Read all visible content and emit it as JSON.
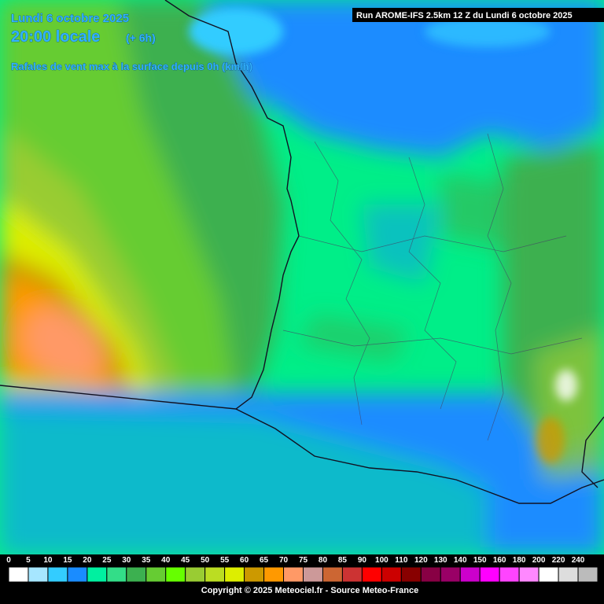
{
  "header": {
    "date": "Lundi 6 octobre 2025",
    "time": "20:00 locale",
    "offset": "(+ 6h)",
    "parameter": "Rafales de vent max à la surface depuis 0h (km/h)",
    "run": "Run AROME-IFS 2.5km 12 Z du Lundi 6 octobre 2025"
  },
  "legend": {
    "items": [
      {
        "label": "0",
        "color": "#ffffff"
      },
      {
        "label": "5",
        "color": "#a6e6ff"
      },
      {
        "label": "10",
        "color": "#33ccff"
      },
      {
        "label": "15",
        "color": "#1a8cff"
      },
      {
        "label": "20",
        "color": "#00f0a0"
      },
      {
        "label": "25",
        "color": "#33dd88"
      },
      {
        "label": "30",
        "color": "#3cb050"
      },
      {
        "label": "35",
        "color": "#66cc33"
      },
      {
        "label": "40",
        "color": "#66ff00"
      },
      {
        "label": "45",
        "color": "#99cc33"
      },
      {
        "label": "50",
        "color": "#bbdd22"
      },
      {
        "label": "55",
        "color": "#ddee00"
      },
      {
        "label": "60",
        "color": "#cc9900"
      },
      {
        "label": "65",
        "color": "#ff9900"
      },
      {
        "label": "70",
        "color": "#ff9966"
      },
      {
        "label": "75",
        "color": "#cc9999"
      },
      {
        "label": "80",
        "color": "#cc6633"
      },
      {
        "label": "85",
        "color": "#cc3333"
      },
      {
        "label": "90",
        "color": "#ff0000"
      },
      {
        "label": "100",
        "color": "#cc0000"
      },
      {
        "label": "110",
        "color": "#880000"
      },
      {
        "label": "120",
        "color": "#880044"
      },
      {
        "label": "130",
        "color": "#990066"
      },
      {
        "label": "140",
        "color": "#cc00cc"
      },
      {
        "label": "150",
        "color": "#ff00ff"
      },
      {
        "label": "160",
        "color": "#ff44ff"
      },
      {
        "label": "180",
        "color": "#ff88ff"
      },
      {
        "label": "200",
        "color": "#ffffff"
      },
      {
        "label": "220",
        "color": "#dddddd"
      },
      {
        "label": "240",
        "color": "#bbbbbb"
      }
    ]
  },
  "footer": {
    "copyright": "Copyright © 2025 Meteociel.fr - Source Meteo-France"
  }
}
